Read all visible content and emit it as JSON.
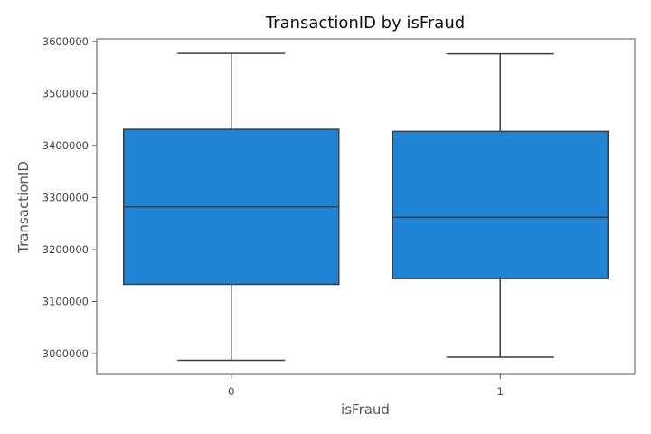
{
  "chart_data": {
    "type": "box",
    "title": "TransactionID by isFraud",
    "xlabel": "isFraud",
    "ylabel": "TransactionID",
    "categories": [
      "0",
      "1"
    ],
    "ylim": [
      2960000,
      3605000
    ],
    "yticks": [
      3000000,
      3100000,
      3200000,
      3300000,
      3400000,
      3500000,
      3600000
    ],
    "ytick_labels": [
      "3000000",
      "3100000",
      "3200000",
      "3300000",
      "3400000",
      "3500000",
      "3600000"
    ],
    "grid": false,
    "box_color": "#1f84d6",
    "edge_color": "#3d3d3d",
    "boxes": [
      {
        "category": "0",
        "whisker_low": 2987000,
        "q1": 3133000,
        "median": 3282000,
        "q3": 3431000,
        "whisker_high": 3577000
      },
      {
        "category": "1",
        "whisker_low": 2993000,
        "q1": 3144000,
        "median": 3262000,
        "q3": 3427000,
        "whisker_high": 3576000
      }
    ]
  }
}
